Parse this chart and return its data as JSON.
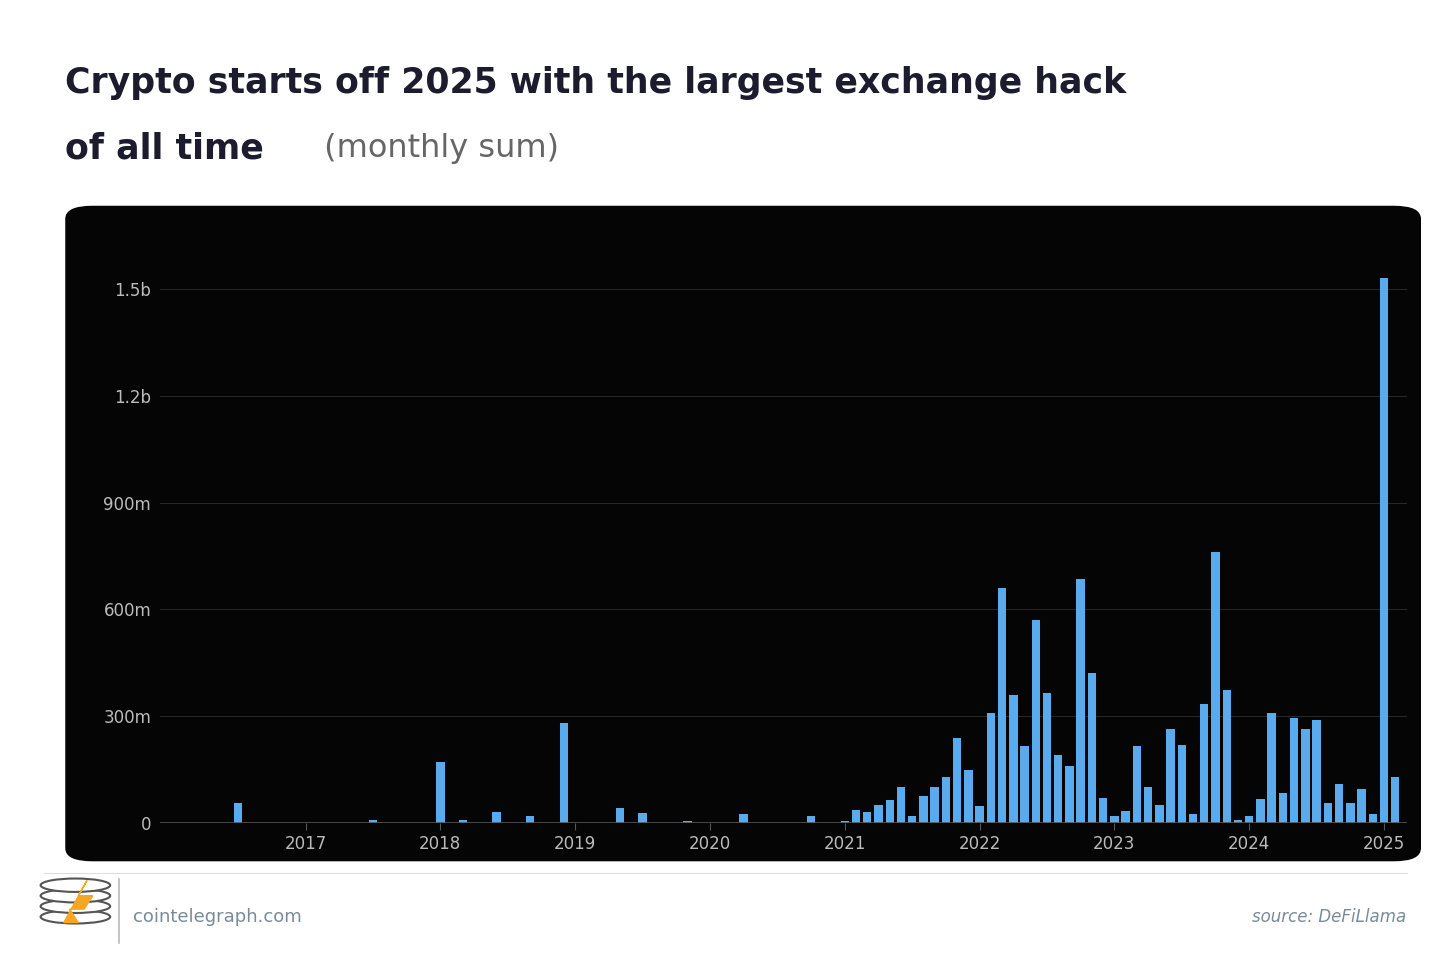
{
  "title_bold": "Crypto starts off 2025 with the largest exchange hack",
  "title_bold2": "of all time",
  "title_light": " (monthly sum)",
  "bar_color": "#5aabee",
  "plot_bg": "#050505",
  "axis_label_color": "#bbbbbb",
  "grid_color": "#2a2a2a",
  "source_text": "source: DeFiLlama",
  "watermark_text": "cointelegraph.com",
  "ytick_values": [
    0,
    300000000,
    600000000,
    900000000,
    1200000000,
    1500000000
  ],
  "ylim": [
    0,
    1680000000
  ],
  "monthly_data": {
    "2016-01": 0,
    "2016-02": 0,
    "2016-03": 0,
    "2016-04": 0,
    "2016-05": 0,
    "2016-06": 0,
    "2016-07": 55000000,
    "2016-08": 0,
    "2016-09": 0,
    "2016-10": 0,
    "2016-11": 0,
    "2016-12": 0,
    "2017-01": 0,
    "2017-02": 0,
    "2017-03": 0,
    "2017-04": 0,
    "2017-05": 0,
    "2017-06": 0,
    "2017-07": 8000000,
    "2017-08": 0,
    "2017-09": 0,
    "2017-10": 0,
    "2017-11": 0,
    "2017-12": 0,
    "2018-01": 170000000,
    "2018-02": 0,
    "2018-03": 8000000,
    "2018-04": 0,
    "2018-05": 0,
    "2018-06": 31000000,
    "2018-07": 0,
    "2018-08": 0,
    "2018-09": 20000000,
    "2018-10": 0,
    "2018-11": 0,
    "2018-12": 280000000,
    "2019-01": 0,
    "2019-02": 0,
    "2019-03": 0,
    "2019-04": 0,
    "2019-05": 42000000,
    "2019-06": 0,
    "2019-07": 28000000,
    "2019-08": 0,
    "2019-09": 0,
    "2019-10": 0,
    "2019-11": 5000000,
    "2019-12": 0,
    "2020-01": 0,
    "2020-02": 0,
    "2020-03": 0,
    "2020-04": 25000000,
    "2020-05": 0,
    "2020-06": 0,
    "2020-07": 0,
    "2020-08": 0,
    "2020-09": 0,
    "2020-10": 20000000,
    "2020-11": 0,
    "2020-12": 0,
    "2021-01": 5000000,
    "2021-02": 37000000,
    "2021-03": 30000000,
    "2021-04": 50000000,
    "2021-05": 65000000,
    "2021-06": 100000000,
    "2021-07": 20000000,
    "2021-08": 75000000,
    "2021-09": 100000000,
    "2021-10": 130000000,
    "2021-11": 240000000,
    "2021-12": 150000000,
    "2022-01": 48000000,
    "2022-02": 310000000,
    "2022-03": 660000000,
    "2022-04": 360000000,
    "2022-05": 215000000,
    "2022-06": 570000000,
    "2022-07": 365000000,
    "2022-08": 190000000,
    "2022-09": 160000000,
    "2022-10": 685000000,
    "2022-11": 420000000,
    "2022-12": 70000000,
    "2023-01": 20000000,
    "2023-02": 35000000,
    "2023-03": 215000000,
    "2023-04": 100000000,
    "2023-05": 50000000,
    "2023-06": 265000000,
    "2023-07": 220000000,
    "2023-08": 25000000,
    "2023-09": 335000000,
    "2023-10": 760000000,
    "2023-11": 375000000,
    "2023-12": 8000000,
    "2024-01": 20000000,
    "2024-02": 68000000,
    "2024-03": 310000000,
    "2024-04": 85000000,
    "2024-05": 295000000,
    "2024-06": 265000000,
    "2024-07": 290000000,
    "2024-08": 55000000,
    "2024-09": 110000000,
    "2024-10": 55000000,
    "2024-11": 95000000,
    "2024-12": 25000000,
    "2025-01": 1530000000,
    "2025-02": 130000000
  }
}
